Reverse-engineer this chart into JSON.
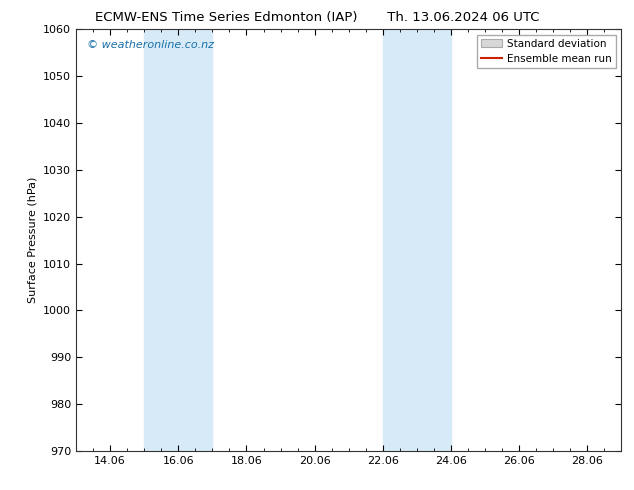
{
  "title_left": "ECMW-ENS Time Series Edmonton (IAP)",
  "title_right": "Th. 13.06.2024 06 UTC",
  "ylabel": "Surface Pressure (hPa)",
  "ylim": [
    970,
    1060
  ],
  "yticks": [
    970,
    980,
    990,
    1000,
    1010,
    1020,
    1030,
    1040,
    1050,
    1060
  ],
  "xtick_labels": [
    "14.06",
    "16.06",
    "18.06",
    "20.06",
    "22.06",
    "24.06",
    "26.06",
    "28.06"
  ],
  "xtick_positions": [
    1,
    3,
    5,
    7,
    9,
    11,
    13,
    15
  ],
  "x_min": 0,
  "x_max": 16,
  "shaded_bands": [
    {
      "x_start": 2.0,
      "x_end": 3.5
    },
    {
      "x_start": 3.5,
      "x_end": 4.0
    },
    {
      "x_start": 9.0,
      "x_end": 10.0
    },
    {
      "x_start": 10.0,
      "x_end": 11.0
    }
  ],
  "shade_color_dark": "#c5dff0",
  "shade_color_light": "#daeaf6",
  "watermark_text": "© weatheronline.co.nz",
  "watermark_color": "#1a6fa8",
  "legend_stddev_facecolor": "#d8d8d8",
  "legend_stddev_edgecolor": "#aaaaaa",
  "legend_mean_color": "#cc2200",
  "background_color": "#ffffff",
  "title_fontsize": 9.5,
  "axis_fontsize": 8,
  "ylabel_fontsize": 8,
  "watermark_fontsize": 8,
  "legend_fontsize": 7.5,
  "band1_x0": 2.0,
  "band1_x1": 4.0,
  "band2_x0": 9.0,
  "band2_x1": 11.0,
  "band_shade": "#d6eaf8"
}
